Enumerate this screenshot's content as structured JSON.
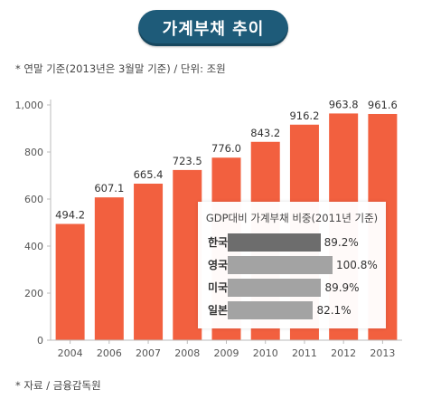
{
  "title": "가계부채 추이",
  "note_top": "* 연말 기준(2013년은 3월말 기준) / 단위: 조원",
  "note_bottom": "* 자료 / 금융감독원",
  "colors": {
    "title_bg": "#1e5b79",
    "bar": "#f2603f",
    "inset_bar_dark": "#6d6d6d",
    "inset_bar_light": "#a3a3a3"
  },
  "chart_data": [
    {
      "type": "bar",
      "categories": [
        "2004",
        "2006",
        "2007",
        "2008",
        "2009",
        "2010",
        "2011",
        "2012",
        "2013"
      ],
      "values": [
        494.2,
        607.1,
        665.4,
        723.5,
        776.0,
        843.2,
        916.2,
        963.8,
        961.6
      ],
      "value_labels": [
        "494.2",
        "607.1",
        "665.4",
        "723.5",
        "776.0",
        "843.2",
        "916.2",
        "963.8",
        "961.6"
      ],
      "ylim": [
        0,
        1000
      ],
      "yticks": [
        0,
        200,
        400,
        600,
        800,
        1000
      ],
      "ytick_labels": [
        "0",
        "200",
        "400",
        "600",
        "800",
        "1,000"
      ],
      "grid": false,
      "legend": "none"
    },
    {
      "type": "bar",
      "orientation": "horizontal",
      "title": "GDP대비 가계부채 비중",
      "title_note": "(2011년 기준)",
      "categories": [
        "한국",
        "영국",
        "미국",
        "일본"
      ],
      "values": [
        89.2,
        100.8,
        89.9,
        82.1
      ],
      "value_labels": [
        "89.2%",
        "100.8%",
        "89.9%",
        "82.1%"
      ]
    }
  ]
}
